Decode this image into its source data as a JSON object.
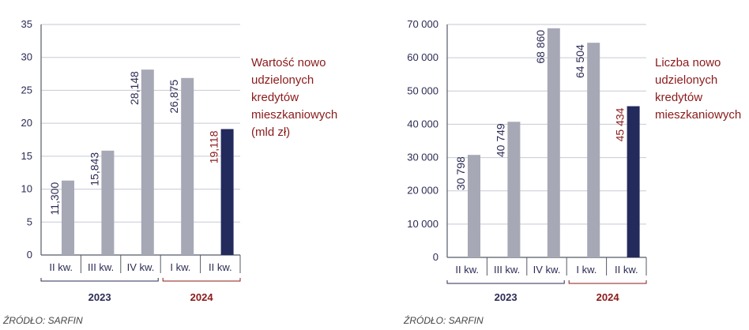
{
  "colors": {
    "bar_default": "#a6a8b6",
    "bar_highlight": "#232a5c",
    "text_dark": "#2b2b55",
    "text_red": "#8b1a1a",
    "grid": "#c7cad4",
    "axis": "#555a66",
    "year_2023": "#2b2b55",
    "year_2024": "#8b1a1a"
  },
  "chart_data": [
    {
      "type": "bar",
      "categories": [
        "II kw.",
        "III kw.",
        "IV kw.",
        "I kw.",
        "II kw."
      ],
      "values": [
        11.3,
        15.843,
        28.148,
        26.875,
        19.118
      ],
      "value_labels": [
        "11,300",
        "15,843",
        "28,148",
        "26,875",
        "19,118"
      ],
      "highlight_index": 4,
      "year_groups": [
        {
          "label": "2023",
          "from": 0,
          "to": 2
        },
        {
          "label": "2024",
          "from": 3,
          "to": 4
        }
      ],
      "yticks": [
        "0",
        "5",
        "10",
        "15",
        "20",
        "25",
        "30",
        "35"
      ],
      "ylim": [
        0,
        35
      ],
      "grid": true,
      "annotation": [
        "Wartość nowo",
        "udzielonych",
        "kredytów",
        "mieszkaniowych",
        "(mld zł)"
      ],
      "source": "ŹRÓDŁO: SARFIN"
    },
    {
      "type": "bar",
      "categories": [
        "II kw.",
        "III kw.",
        "IV kw.",
        "I kw.",
        "II kw."
      ],
      "values": [
        30798,
        40749,
        68860,
        64504,
        45434
      ],
      "value_labels": [
        "30 798",
        "40 749",
        "68 860",
        "64 504",
        "45 434"
      ],
      "highlight_index": 4,
      "year_groups": [
        {
          "label": "2023",
          "from": 0,
          "to": 2
        },
        {
          "label": "2024",
          "from": 3,
          "to": 4
        }
      ],
      "yticks": [
        "0",
        "10 000",
        "20 000",
        "30 000",
        "40 000",
        "50 000",
        "60 000",
        "70 000"
      ],
      "ylim": [
        0,
        70000
      ],
      "grid": true,
      "annotation": [
        "Liczba nowo",
        "udzielonych",
        "kredytów",
        "mieszkaniowych"
      ],
      "source": "ŹRÓDŁO: SARFIN"
    }
  ]
}
